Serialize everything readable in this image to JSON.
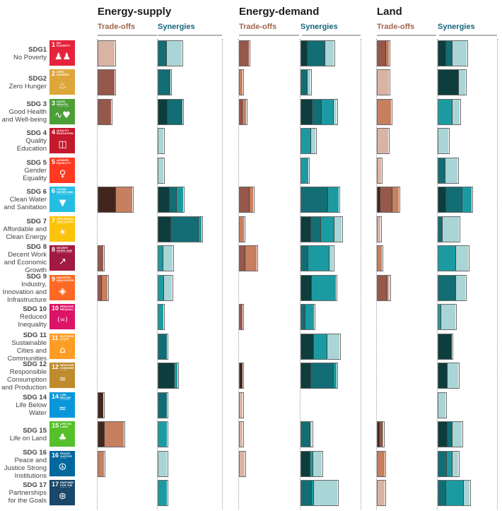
{
  "header": {
    "groups": [
      {
        "title": "Energy-supply",
        "tradeoffs_label": "Trade-offs",
        "synergies_label": "Synergies"
      },
      {
        "title": "Energy-demand",
        "tradeoffs_label": "Trade-offs",
        "synergies_label": "Synergies"
      },
      {
        "title": "Land",
        "tradeoffs_label": "Trade-offs",
        "synergies_label": "Synergies"
      }
    ]
  },
  "chart_data": {
    "type": "bar",
    "orientation": "horizontal-stacked",
    "note": "Small-multiple stacked horizontal bars; lengths are relative (no numeric axis shown). Shades t0(darkest)-t3(lightest) = trade-off intensity classes; s0(darkest)-s3(lightest) = synergy intensity classes.",
    "groups": [
      "Energy-supply",
      "Energy-demand",
      "Land"
    ],
    "measures": [
      "Trade-offs",
      "Synergies"
    ],
    "palette": {
      "t0": "#42261d",
      "t1": "#96584a",
      "t2": "#c67f5f",
      "t3": "#d9b4a5",
      "s0": "#0d3d3c",
      "s1": "#126d74",
      "s2": "#1b9ba1",
      "s3": "#a9d5d6"
    },
    "rows": [
      {
        "code": "SDG1",
        "name": "No Poverty",
        "icon": {
          "n": "1",
          "title": "No Poverty",
          "color": "#E5243B",
          "glyph": "♟♟"
        },
        "bars": {
          "es_t": [
            [
              "t3",
              23
            ]
          ],
          "es_s": [
            [
              "s1",
              11
            ],
            [
              "s3",
              22
            ]
          ],
          "ed_t": [
            [
              "t1",
              13
            ]
          ],
          "ed_s": [
            [
              "s0",
              8
            ],
            [
              "s1",
              25
            ],
            [
              "s3",
              13
            ]
          ],
          "land_t": [
            [
              "t1",
              11
            ],
            [
              "t2",
              5
            ]
          ],
          "land_s": [
            [
              "s0",
              10
            ],
            [
              "s1",
              9
            ],
            [
              "s3",
              21
            ]
          ]
        }
      },
      {
        "code": "SDG2",
        "name": "Zero Hunger",
        "icon": {
          "n": "2",
          "title": "Zero Hunger",
          "color": "#DDA63A",
          "glyph": "♨"
        },
        "bars": {
          "es_t": [
            [
              "t1",
              23
            ]
          ],
          "es_s": [
            [
              "s1",
              17
            ]
          ],
          "ed_t": [
            [
              "t2",
              4
            ]
          ],
          "ed_s": [
            [
              "s1",
              8
            ],
            [
              "s3",
              5
            ]
          ],
          "land_t": [
            [
              "t3",
              16
            ]
          ],
          "land_s": [
            [
              "s0",
              28
            ],
            [
              "s3",
              10
            ]
          ]
        }
      },
      {
        "code": "SDG 3",
        "name": "Good Health and Well-being",
        "icon": {
          "n": "3",
          "title": "Good Health and Well-being",
          "color": "#4C9F38",
          "glyph": "∿♥"
        },
        "bars": {
          "es_t": [
            [
              "t1",
              18
            ]
          ],
          "es_s": [
            [
              "s0",
              12
            ],
            [
              "s1",
              22
            ]
          ],
          "ed_t": [
            [
              "t1",
              3
            ],
            [
              "t2",
              6
            ]
          ],
          "ed_s": [
            [
              "s0",
              15
            ],
            [
              "s1",
              13
            ],
            [
              "s2",
              17
            ],
            [
              "s3",
              5
            ]
          ],
          "land_t": [
            [
              "t2",
              19
            ]
          ],
          "land_s": [
            [
              "s2",
              19
            ],
            [
              "s3",
              11
            ]
          ]
        }
      },
      {
        "code": "SDG 4",
        "name": "Quality Education",
        "icon": {
          "n": "4",
          "title": "Quality Education",
          "color": "#C5192D",
          "glyph": "◫"
        },
        "bars": {
          "es_t": [],
          "es_s": [
            [
              "s3",
              7
            ]
          ],
          "ed_t": [],
          "ed_s": [
            [
              "s2",
              13
            ],
            [
              "s3",
              7
            ]
          ],
          "land_t": [
            [
              "t3",
              15
            ]
          ],
          "land_s": [
            [
              "s3",
              14
            ]
          ]
        }
      },
      {
        "code": "SDG 5",
        "name": "Gender Equality",
        "icon": {
          "n": "5",
          "title": "Gender Equality",
          "color": "#FF3A21",
          "glyph": "♀"
        },
        "bars": {
          "es_t": [],
          "es_s": [
            [
              "s3",
              7
            ]
          ],
          "ed_t": [],
          "ed_s": [
            [
              "s2",
              10
            ]
          ],
          "land_t": [
            [
              "t3",
              5
            ]
          ],
          "land_s": [
            [
              "s1",
              9
            ],
            [
              "s3",
              18
            ]
          ]
        }
      },
      {
        "code": "SDG 6",
        "name": "Clean Water and Sanitation",
        "icon": {
          "n": "6",
          "title": "Clean Water and Sanitation",
          "color": "#26BDE2",
          "glyph": "▼"
        },
        "bars": {
          "es_t": [
            [
              "t0",
              24
            ],
            [
              "t2",
              24
            ]
          ],
          "es_s": [
            [
              "s0",
              15
            ],
            [
              "s1",
              10
            ],
            [
              "s2",
              10
            ]
          ],
          "ed_t": [
            [
              "t1",
              13
            ],
            [
              "t2",
              6
            ]
          ],
          "ed_s": [
            [
              "s1",
              37
            ],
            [
              "s2",
              16
            ]
          ],
          "land_t": [
            [
              "t0",
              3
            ],
            [
              "t1",
              17
            ],
            [
              "t2",
              10
            ]
          ],
          "land_s": [
            [
              "s0",
              10
            ],
            [
              "s1",
              23
            ],
            [
              "s2",
              14
            ]
          ]
        }
      },
      {
        "code": "SDG 7",
        "name": "Affordable and Clean Energy",
        "icon": {
          "n": "7",
          "title": "Affordable and Clean Energy",
          "color": "#FCC30B",
          "glyph": "☀"
        },
        "bars": {
          "es_t": [],
          "es_s": [
            [
              "s0",
              17
            ],
            [
              "s1",
              39
            ],
            [
              "s2",
              5
            ]
          ],
          "ed_t": [
            [
              "t2",
              6
            ]
          ],
          "ed_s": [
            [
              "s0",
              13
            ],
            [
              "s1",
              14
            ],
            [
              "s2",
              19
            ],
            [
              "s3",
              11
            ]
          ],
          "land_t": [
            [
              "t3",
              4
            ]
          ],
          "land_s": [
            [
              "s1",
              5
            ],
            [
              "s3",
              24
            ]
          ]
        }
      },
      {
        "code": "SDG 8",
        "name": "Decent Work and Economic Growth",
        "icon": {
          "n": "8",
          "title": "Decent Work and Economic Growth",
          "color": "#A21942",
          "glyph": "↗"
        },
        "bars": {
          "es_t": [
            [
              "t1",
              7
            ]
          ],
          "es_s": [
            [
              "s2",
              6
            ],
            [
              "s3",
              14
            ]
          ],
          "ed_t": [
            [
              "t1",
              7
            ],
            [
              "t2",
              17
            ]
          ],
          "ed_s": [
            [
              "s1",
              9
            ],
            [
              "s2",
              30
            ],
            [
              "s3",
              6
            ]
          ],
          "land_t": [
            [
              "t2",
              6
            ]
          ],
          "land_s": [
            [
              "s2",
              24
            ],
            [
              "s3",
              18
            ]
          ]
        }
      },
      {
        "code": "SDG 9",
        "name": "Industry, Innovation and Infrastructure",
        "icon": {
          "n": "9",
          "title": "Industry, Innovation and Infrastructure",
          "color": "#FD6925",
          "glyph": "◈"
        },
        "bars": {
          "es_t": [
            [
              "t1",
              4
            ],
            [
              "t2",
              9
            ]
          ],
          "es_s": [
            [
              "s2",
              7
            ],
            [
              "s3",
              12
            ]
          ],
          "ed_t": [],
          "ed_s": [
            [
              "s0",
              14
            ],
            [
              "s2",
              35
            ]
          ],
          "land_t": [
            [
              "t1",
              13
            ],
            [
              "t3",
              4
            ]
          ],
          "land_s": [
            [
              "s1",
              24
            ],
            [
              "s3",
              14
            ]
          ]
        }
      },
      {
        "code": "SDG 10",
        "name": "Reduced Inequality",
        "icon": {
          "n": "10",
          "title": "Reduced Inequalities",
          "color": "#DD1367",
          "glyph": "(=)"
        },
        "bars": {
          "es_t": [],
          "es_s": [
            [
              "s2",
              7
            ]
          ],
          "ed_t": [
            [
              "t1",
              4
            ]
          ],
          "ed_s": [
            [
              "s1",
              5
            ],
            [
              "s2",
              13
            ]
          ],
          "land_t": [],
          "land_s": [
            [
              "s2",
              3
            ],
            [
              "s3",
              21
            ]
          ]
        }
      },
      {
        "code": "SDG 11",
        "name": "Sustainable Cities and Communities",
        "icon": {
          "n": "11",
          "title": "Sustainable Cities and Communities",
          "color": "#FD9D24",
          "glyph": "⌂"
        },
        "bars": {
          "es_t": [],
          "es_s": [
            [
              "s1",
              12
            ]
          ],
          "ed_t": [],
          "ed_s": [
            [
              "s0",
              17
            ],
            [
              "s2",
              19
            ],
            [
              "s3",
              18
            ]
          ],
          "land_t": [],
          "land_s": [
            [
              "s0",
              19
            ]
          ]
        }
      },
      {
        "code": "SDG 12",
        "name": "Responsible Consumption and Production",
        "icon": {
          "n": "12",
          "title": "Responsible Consumption and Production",
          "color": "#BF8B2E",
          "glyph": "∞"
        },
        "bars": {
          "es_t": [],
          "es_s": [
            [
              "s0",
              22
            ],
            [
              "s2",
              5
            ]
          ],
          "ed_t": [
            [
              "t0",
              4
            ]
          ],
          "ed_s": [
            [
              "s0",
              13
            ],
            [
              "s1",
              32
            ],
            [
              "s2",
              5
            ]
          ],
          "land_t": [],
          "land_s": [
            [
              "s0",
              12
            ],
            [
              "s3",
              16
            ]
          ]
        }
      },
      {
        "code": "SDG 14",
        "name": "Life Below Water",
        "icon": {
          "n": "14",
          "title": "Life Below Water",
          "color": "#0A97D9",
          "glyph": "≈"
        },
        "bars": {
          "es_t": [
            [
              "t0",
              7
            ]
          ],
          "es_s": [
            [
              "s1",
              12
            ]
          ],
          "ed_t": [
            [
              "t3",
              4
            ]
          ],
          "ed_s": [],
          "land_t": [],
          "land_s": [
            [
              "s3",
              10
            ]
          ]
        }
      },
      {
        "code": "SDG 15",
        "name": "Life on Land",
        "icon": {
          "n": "15",
          "title": "Life on Land",
          "color": "#56C02B",
          "glyph": "♣"
        },
        "bars": {
          "es_t": [
            [
              "t0",
              8
            ],
            [
              "t2",
              28
            ]
          ],
          "es_s": [
            [
              "s2",
              12
            ]
          ],
          "ed_t": [
            [
              "t3",
              4
            ]
          ],
          "ed_s": [
            [
              "s1",
              12
            ],
            [
              "s3",
              3
            ]
          ],
          "land_t": [
            [
              "t0",
              2
            ],
            [
              "t1",
              4
            ],
            [
              "t3",
              2
            ]
          ],
          "land_s": [
            [
              "s0",
              12
            ],
            [
              "s1",
              7
            ],
            [
              "s3",
              14
            ]
          ]
        }
      },
      {
        "code": "SDG 16",
        "name": "Peace and Justice Strong Institutions",
        "icon": {
          "n": "16",
          "title": "Peace, Justice and Strong Institutions",
          "color": "#00689D",
          "glyph": "☮"
        },
        "bars": {
          "es_t": [
            [
              "t2",
              8
            ]
          ],
          "es_s": [
            [
              "s3",
              12
            ]
          ],
          "ed_t": [
            [
              "t3",
              7
            ]
          ],
          "ed_s": [
            [
              "s0",
              12
            ],
            [
              "s2",
              4
            ],
            [
              "s3",
              13
            ]
          ],
          "land_t": [
            [
              "t2",
              10
            ]
          ],
          "land_s": [
            [
              "s1",
              11
            ],
            [
              "s2",
              8
            ],
            [
              "s3",
              9
            ]
          ]
        }
      },
      {
        "code": "SDG 17",
        "name": "Partnerships for the Goals",
        "icon": {
          "n": "17",
          "title": "Partnerships for the Goals",
          "color": "#19486A",
          "glyph": "⊛"
        },
        "bars": {
          "es_t": [],
          "es_s": [
            [
              "s2",
              12
            ]
          ],
          "ed_t": [],
          "ed_s": [
            [
              "s1",
              14
            ],
            [
              "s2",
              3
            ],
            [
              "s3",
              34
            ]
          ],
          "land_t": [
            [
              "t3",
              10
            ]
          ],
          "land_s": [
            [
              "s1",
              10
            ],
            [
              "s2",
              25
            ],
            [
              "s3",
              9
            ]
          ]
        }
      }
    ]
  }
}
